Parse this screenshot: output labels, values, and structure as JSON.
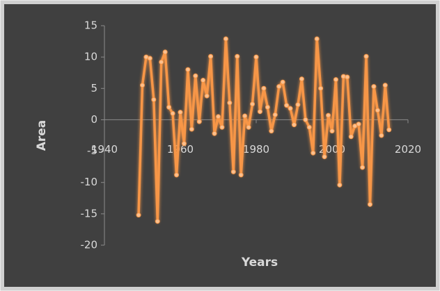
{
  "chart_data": {
    "type": "line",
    "x_label": "Years",
    "y_label": "Area",
    "x": [
      1949,
      1950,
      1951,
      1952,
      1953,
      1954,
      1955,
      1956,
      1957,
      1958,
      1959,
      1960,
      1961,
      1962,
      1963,
      1964,
      1965,
      1966,
      1967,
      1968,
      1969,
      1970,
      1971,
      1972,
      1973,
      1974,
      1975,
      1976,
      1977,
      1978,
      1979,
      1980,
      1981,
      1982,
      1983,
      1984,
      1985,
      1986,
      1987,
      1988,
      1989,
      1990,
      1991,
      1992,
      1993,
      1994,
      1995,
      1996,
      1997,
      1998,
      1999,
      2000,
      2001,
      2002,
      2003,
      2004,
      2005,
      2006,
      2007,
      2008,
      2009,
      2010,
      2011,
      2012,
      2013,
      2014,
      2015
    ],
    "series": [
      {
        "name": "Area",
        "color": "#f79646",
        "values": [
          -15.2,
          5.5,
          10,
          9.8,
          3.2,
          -16.2,
          9.2,
          10.8,
          2,
          1,
          -8.8,
          1.2,
          -3.8,
          8,
          -1.5,
          7,
          -0.3,
          6.3,
          3.8,
          10.1,
          -2.2,
          0.5,
          -1.2,
          12.9,
          2.7,
          -8.3,
          10.1,
          -8.8,
          0.6,
          -1.2,
          2.5,
          10,
          1.3,
          5,
          2,
          -1.8,
          0.8,
          5.3,
          6,
          2.3,
          1.8,
          -0.8,
          2.4,
          6.5,
          0,
          -1.2,
          -5.3,
          12.9,
          5,
          -5.9,
          0.7,
          -1.8,
          6.4,
          -10.4,
          6.9,
          6.8,
          -2.7,
          -1,
          -0.7,
          -7.6,
          10.1,
          -13.5,
          5.3,
          1.5,
          -2.5,
          5.5,
          -1.6
        ]
      }
    ],
    "xlim": [
      1940,
      2020
    ],
    "xticks": [
      1940,
      1960,
      1980,
      2000,
      2020
    ],
    "ylim": [
      -20,
      15
    ],
    "yticks": [
      -20,
      -15,
      -10,
      -5,
      0,
      5,
      10,
      15
    ]
  }
}
